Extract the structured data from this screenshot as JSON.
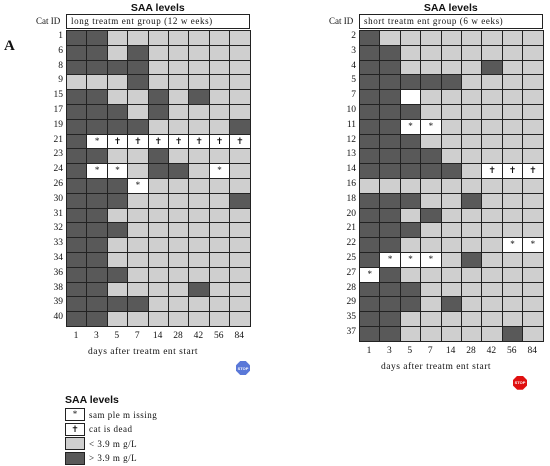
{
  "panel_label": "A",
  "colors": {
    "dark": "#595959",
    "light": "#cfcfcf",
    "white": "#ffffff",
    "stop_blue": "#5a78d8",
    "stop_red": "#e01010"
  },
  "x_ticks": [
    "1",
    "3",
    "5",
    "7",
    "14",
    "28",
    "42",
    "56",
    "84"
  ],
  "x_label": "days after treatm ent start",
  "header_id_label": "Cat ID",
  "icons": {
    "stop_text": "STOP",
    "missing_symbol": "*",
    "dead_symbol": "✝"
  },
  "left": {
    "title": "SAA levels",
    "group_label": "long treatm ent group (12 w eeks)",
    "stop_icon": "stop-sign-blue-icon",
    "rows": [
      {
        "id": "1",
        "cells": [
          "D",
          "D",
          "L",
          "L",
          "L",
          "L",
          "L",
          "L",
          "L"
        ]
      },
      {
        "id": "6",
        "cells": [
          "D",
          "D",
          "L",
          "D",
          "L",
          "L",
          "L",
          "L",
          "L"
        ]
      },
      {
        "id": "8",
        "cells": [
          "D",
          "D",
          "D",
          "D",
          "L",
          "L",
          "L",
          "L",
          "L"
        ]
      },
      {
        "id": "9",
        "cells": [
          "L",
          "L",
          "L",
          "D",
          "L",
          "L",
          "L",
          "L",
          "L"
        ]
      },
      {
        "id": "15",
        "cells": [
          "D",
          "D",
          "L",
          "L",
          "D",
          "L",
          "D",
          "L",
          "L"
        ]
      },
      {
        "id": "17",
        "cells": [
          "D",
          "D",
          "D",
          "L",
          "D",
          "L",
          "L",
          "L",
          "L"
        ]
      },
      {
        "id": "19",
        "cells": [
          "D",
          "D",
          "D",
          "D",
          "L",
          "L",
          "L",
          "L",
          "D"
        ]
      },
      {
        "id": "21",
        "cells": [
          "D",
          "M",
          "X",
          "X",
          "X",
          "X",
          "X",
          "X",
          "X"
        ]
      },
      {
        "id": "23",
        "cells": [
          "D",
          "D",
          "L",
          "L",
          "D",
          "L",
          "L",
          "L",
          "L"
        ]
      },
      {
        "id": "24",
        "cells": [
          "D",
          "M",
          "M",
          "L",
          "D",
          "D",
          "L",
          "M",
          "L"
        ]
      },
      {
        "id": "26",
        "cells": [
          "D",
          "D",
          "D",
          "M",
          "L",
          "L",
          "L",
          "L",
          "L"
        ]
      },
      {
        "id": "30",
        "cells": [
          "D",
          "D",
          "D",
          "L",
          "L",
          "L",
          "L",
          "L",
          "D"
        ]
      },
      {
        "id": "31",
        "cells": [
          "D",
          "D",
          "L",
          "L",
          "L",
          "L",
          "L",
          "L",
          "L"
        ]
      },
      {
        "id": "32",
        "cells": [
          "D",
          "D",
          "D",
          "L",
          "L",
          "L",
          "L",
          "L",
          "L"
        ]
      },
      {
        "id": "33",
        "cells": [
          "D",
          "D",
          "L",
          "L",
          "L",
          "L",
          "L",
          "L",
          "L"
        ]
      },
      {
        "id": "34",
        "cells": [
          "D",
          "D",
          "L",
          "L",
          "L",
          "L",
          "L",
          "L",
          "L"
        ]
      },
      {
        "id": "36",
        "cells": [
          "D",
          "D",
          "D",
          "L",
          "L",
          "L",
          "L",
          "L",
          "L"
        ]
      },
      {
        "id": "38",
        "cells": [
          "D",
          "D",
          "L",
          "L",
          "L",
          "L",
          "D",
          "L",
          "L"
        ]
      },
      {
        "id": "39",
        "cells": [
          "D",
          "D",
          "D",
          "D",
          "L",
          "L",
          "L",
          "L",
          "L"
        ]
      },
      {
        "id": "40",
        "cells": [
          "D",
          "D",
          "L",
          "L",
          "L",
          "L",
          "L",
          "L",
          "L"
        ]
      }
    ]
  },
  "right": {
    "title": "SAA levels",
    "group_label": "short treatm ent group (6 w eeks)",
    "stop_icon": "stop-sign-red-icon",
    "rows": [
      {
        "id": "2",
        "cells": [
          "D",
          "L",
          "L",
          "L",
          "L",
          "L",
          "L",
          "L",
          "L"
        ]
      },
      {
        "id": "3",
        "cells": [
          "D",
          "D",
          "L",
          "L",
          "L",
          "L",
          "L",
          "L",
          "L"
        ]
      },
      {
        "id": "4",
        "cells": [
          "D",
          "D",
          "L",
          "L",
          "L",
          "L",
          "D",
          "L",
          "L"
        ]
      },
      {
        "id": "5",
        "cells": [
          "D",
          "D",
          "D",
          "D",
          "D",
          "L",
          "L",
          "L",
          "L"
        ]
      },
      {
        "id": "7",
        "cells": [
          "D",
          "D",
          "W",
          "L",
          "L",
          "L",
          "L",
          "L",
          "L"
        ]
      },
      {
        "id": "10",
        "cells": [
          "D",
          "D",
          "D",
          "L",
          "L",
          "L",
          "L",
          "L",
          "L"
        ]
      },
      {
        "id": "11",
        "cells": [
          "D",
          "D",
          "M",
          "M",
          "L",
          "L",
          "L",
          "L",
          "L"
        ]
      },
      {
        "id": "12",
        "cells": [
          "D",
          "D",
          "D",
          "L",
          "L",
          "L",
          "L",
          "L",
          "L"
        ]
      },
      {
        "id": "13",
        "cells": [
          "D",
          "D",
          "D",
          "D",
          "L",
          "L",
          "L",
          "L",
          "L"
        ]
      },
      {
        "id": "14",
        "cells": [
          "D",
          "D",
          "D",
          "D",
          "D",
          "L",
          "X",
          "X",
          "X"
        ]
      },
      {
        "id": "16",
        "cells": [
          "L",
          "L",
          "L",
          "L",
          "L",
          "L",
          "L",
          "L",
          "L"
        ]
      },
      {
        "id": "18",
        "cells": [
          "D",
          "D",
          "D",
          "L",
          "L",
          "D",
          "L",
          "L",
          "L"
        ]
      },
      {
        "id": "20",
        "cells": [
          "D",
          "D",
          "L",
          "D",
          "L",
          "L",
          "L",
          "L",
          "L"
        ]
      },
      {
        "id": "21",
        "cells": [
          "D",
          "D",
          "D",
          "L",
          "L",
          "L",
          "L",
          "L",
          "L"
        ]
      },
      {
        "id": "22",
        "cells": [
          "D",
          "D",
          "L",
          "L",
          "L",
          "L",
          "L",
          "M",
          "M"
        ]
      },
      {
        "id": "25",
        "cells": [
          "D",
          "M",
          "M",
          "M",
          "L",
          "D",
          "L",
          "L",
          "L"
        ]
      },
      {
        "id": "27",
        "cells": [
          "M",
          "D",
          "L",
          "L",
          "L",
          "L",
          "L",
          "L",
          "L"
        ]
      },
      {
        "id": "28",
        "cells": [
          "D",
          "D",
          "D",
          "L",
          "L",
          "L",
          "L",
          "L",
          "L"
        ]
      },
      {
        "id": "29",
        "cells": [
          "D",
          "D",
          "D",
          "L",
          "D",
          "L",
          "L",
          "L",
          "L"
        ]
      },
      {
        "id": "35",
        "cells": [
          "D",
          "D",
          "L",
          "L",
          "L",
          "L",
          "L",
          "L",
          "L"
        ]
      },
      {
        "id": "37",
        "cells": [
          "D",
          "D",
          "L",
          "L",
          "L",
          "L",
          "L",
          "D",
          "L"
        ]
      }
    ]
  },
  "legend": {
    "title": "SAA levels",
    "items": [
      {
        "kind": "M",
        "label": "sam ple m issing"
      },
      {
        "kind": "X",
        "label": "cat is dead"
      },
      {
        "kind": "L",
        "label": "< 3.9 m g/L"
      },
      {
        "kind": "D",
        "label": "> 3.9 m g/L"
      }
    ]
  }
}
